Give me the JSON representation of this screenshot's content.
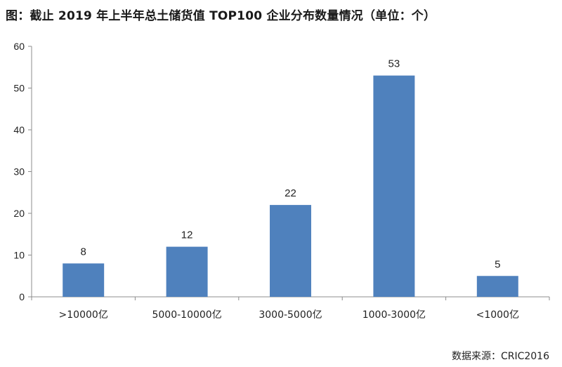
{
  "chart_data": {
    "type": "bar",
    "title": "图：截止 2019 年上半年总土储货值 TOP100 企业分布数量情况（单位：个）",
    "categories": [
      ">10000亿",
      "5000-10000亿",
      "3000-5000亿",
      "1000-3000亿",
      "<1000亿"
    ],
    "values": [
      8,
      12,
      22,
      53,
      5
    ],
    "ylim": [
      0,
      60
    ],
    "yticks": [
      0,
      10,
      20,
      30,
      40,
      50,
      60
    ],
    "xlabel": "",
    "ylabel": "",
    "grid": false,
    "legend": "none",
    "bar_color": "#4f81bd",
    "source": "数据来源：CRIC2016"
  }
}
